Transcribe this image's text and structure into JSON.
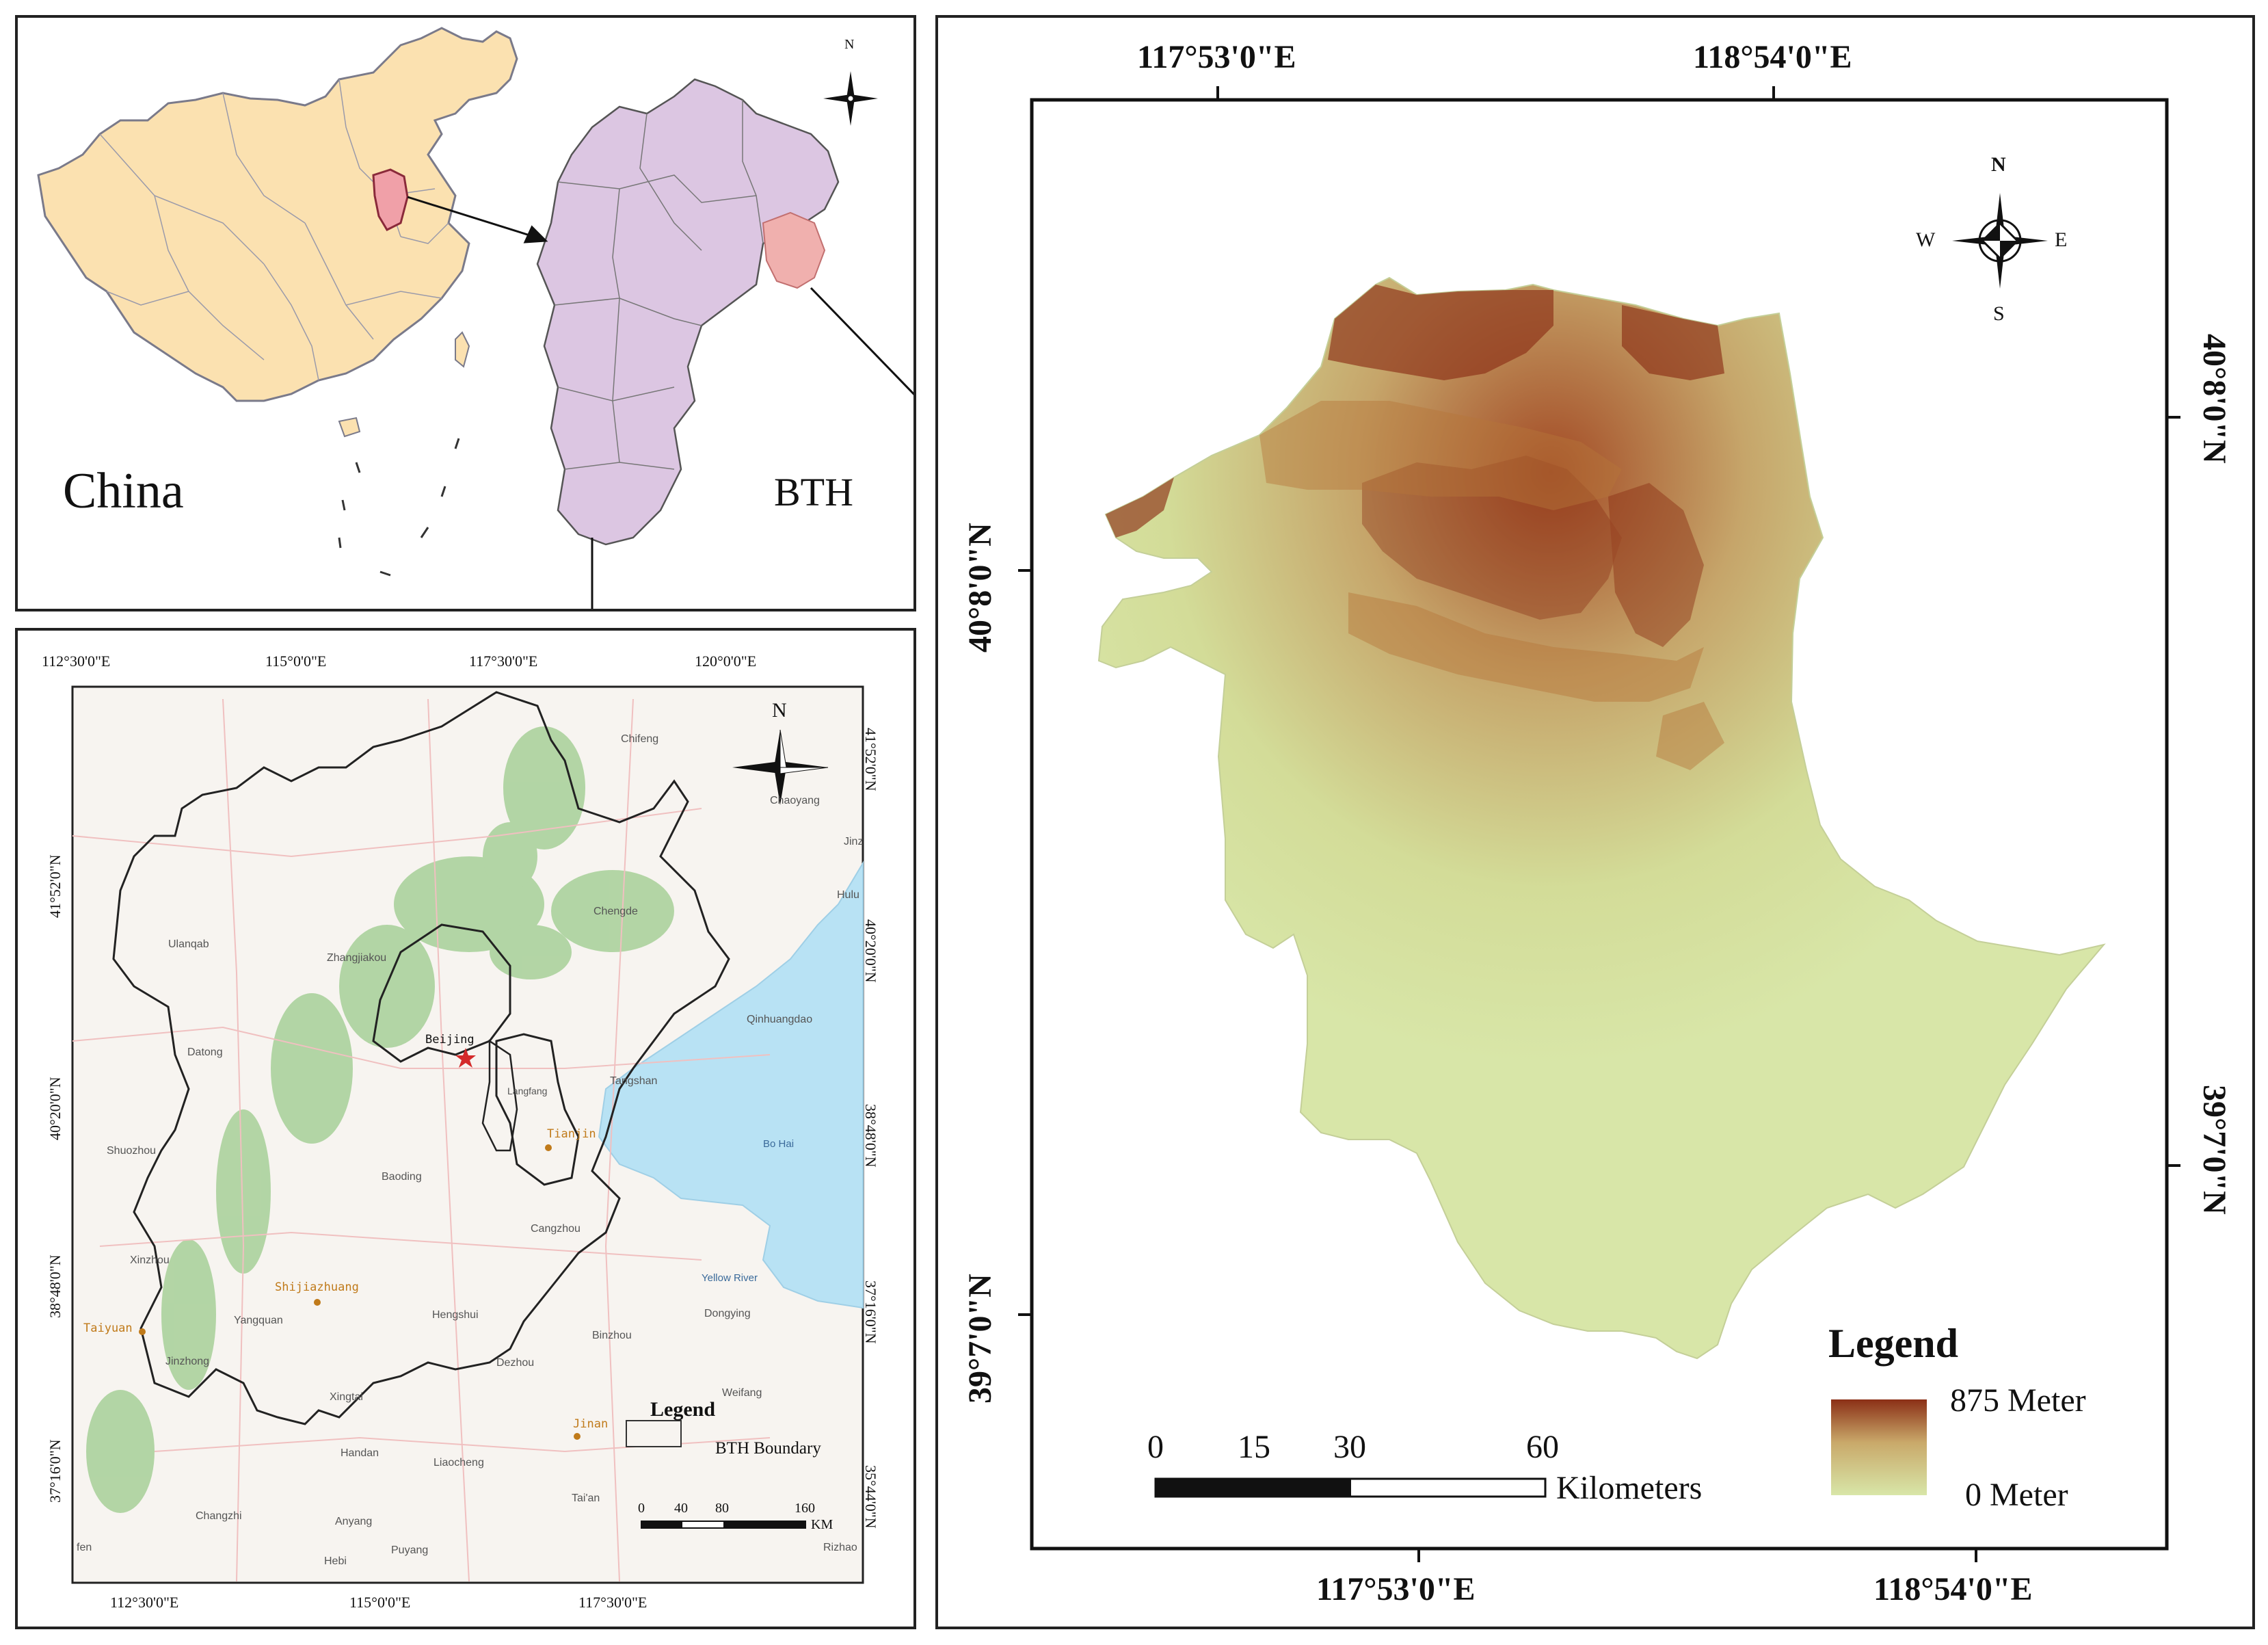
{
  "china_panel": {
    "label_china": "China",
    "label_bth": "BTH",
    "north": "N"
  },
  "bth_panel": {
    "top_ticks": [
      "112°30'0\"E",
      "115°0'0\"E",
      "117°30'0\"E",
      "120°0'0\"E"
    ],
    "bottom_ticks": [
      "112°30'0\"E",
      "115°0'0\"E",
      "117°30'0\"E"
    ],
    "left_ticks": [
      "41°52'0\"N",
      "40°20'0\"N",
      "38°48'0\"N",
      "37°16'0\"N"
    ],
    "right_ticks": [
      "41°52'0\"N",
      "40°20'0\"N",
      "38°48'0\"N",
      "37°16'0\"N",
      "35°44'0\"N"
    ],
    "north": "N",
    "cities": {
      "chifeng": "Chifeng",
      "chaoyang": "Chaoyang",
      "chengde": "Chengde",
      "zhangjiakou": "Zhangjiakou",
      "ulanqab": "Ulanqab",
      "datong": "Datong",
      "beijing": "Beijing",
      "langfang": "Langfang",
      "tangshan": "Tangshan",
      "qinhuangdao": "Qinhuangdao",
      "tianjin": "Tianjin",
      "bohai": "Bo Hai",
      "shuozhou": "Shuozhou",
      "baoding": "Baoding",
      "xinzhou": "Xinzhou",
      "cangzhou": "Cangzhou",
      "shijiazhuang": "Shijiazhuang",
      "yellow_river": "Yellow River",
      "dongying": "Dongying",
      "taiyuan": "Taiyuan",
      "yangquan": "Yangquan",
      "hengshui": "Hengshui",
      "binzhou": "Binzhou",
      "jinzhong": "Jinzhong",
      "dezhou": "Dezhou",
      "weifang": "Weifang",
      "xingtai": "Xingtai",
      "jinan": "Jinan",
      "handan": "Handan",
      "liaocheng": "Liaocheng",
      "taian": "Tai'an",
      "changzhi": "Changzhi",
      "anyang": "Anyang",
      "hebi": "Hebi",
      "puyang": "Puyang",
      "rizhao": "Rizhao",
      "huludao": "Hulu",
      "jinzhou": "Jinz",
      "fen": "fen"
    },
    "legend_title": "Legend",
    "legend_item": "BTH Boundary",
    "scale_labels": [
      "0",
      "40",
      "80",
      "160"
    ],
    "scale_unit": "KM"
  },
  "dem_panel": {
    "top_ticks": [
      "117°53'0\"E",
      "118°54'0\"E"
    ],
    "bottom_ticks": [
      "117°53'0\"E",
      "118°54'0\"E"
    ],
    "left_ticks": [
      "40°8'0\"N",
      "39°7'0\"N"
    ],
    "right_ticks": [
      "40°8'0\"N",
      "39°7'0\"N"
    ],
    "compass": {
      "n": "N",
      "s": "S",
      "e": "E",
      "w": "W"
    },
    "scale_labels": [
      "0",
      "15",
      "30",
      "60"
    ],
    "scale_unit": "Kilometers",
    "legend_title": "Legend",
    "legend_max": "875 Meter",
    "legend_min": "0 Meter",
    "colors": {
      "high": "#8b2f16",
      "mid": "#c9a96a",
      "low": "#d8e6a8"
    }
  }
}
